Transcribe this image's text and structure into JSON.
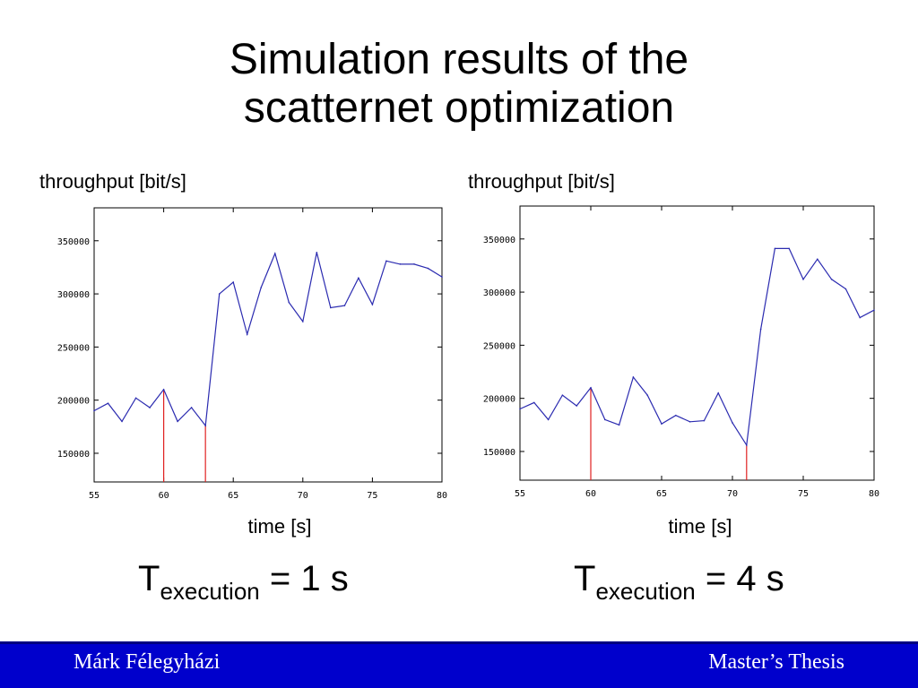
{
  "slide": {
    "title_line1": "Simulation results of the",
    "title_line2": "scatternet optimization"
  },
  "left": {
    "ylabel": "throughput [bit/s]",
    "xlabel": "time [s]",
    "formula_T": "T",
    "formula_sub": "execution",
    "formula_rest": " = 1 s"
  },
  "right": {
    "ylabel": "throughput [bit/s]",
    "xlabel": "time [s]",
    "formula_T": "T",
    "formula_sub": "execution",
    "formula_rest": " = 4 s"
  },
  "footer": {
    "author": "Márk Félegyházi",
    "thesis": "Master’s Thesis",
    "background_color": "#0000cc"
  },
  "chart_data": [
    {
      "type": "line",
      "xlim": [
        55,
        80
      ],
      "ylim": [
        123000,
        381000
      ],
      "xticks": [
        55,
        60,
        65,
        70,
        75,
        80
      ],
      "yticks": [
        150000,
        200000,
        250000,
        300000,
        350000
      ],
      "ytick_labels": [
        "150000",
        "200000",
        "250000",
        "300000",
        "350000"
      ],
      "line_color": "#2b2bb0",
      "marker_color": "#e02020",
      "x": [
        55,
        56,
        57,
        58,
        59,
        60,
        61,
        62,
        63,
        64,
        65,
        66,
        67,
        68,
        69,
        70,
        71,
        72,
        73,
        74,
        75,
        76,
        77,
        78,
        79,
        80
      ],
      "y": [
        190000,
        197000,
        180000,
        202000,
        193000,
        210000,
        180000,
        193000,
        176000,
        300000,
        311000,
        262000,
        306000,
        338000,
        292000,
        274000,
        339000,
        287000,
        289000,
        315000,
        290000,
        331000,
        328000,
        328000,
        324000,
        316000
      ],
      "markers": [
        60,
        63
      ]
    },
    {
      "type": "line",
      "xlim": [
        55,
        80
      ],
      "ylim": [
        123000,
        381000
      ],
      "xticks": [
        55,
        60,
        65,
        70,
        75,
        80
      ],
      "yticks": [
        150000,
        200000,
        250000,
        300000,
        350000
      ],
      "ytick_labels": [
        "150000",
        "200000",
        "250000",
        "300000",
        "350000"
      ],
      "line_color": "#2b2bb0",
      "marker_color": "#e02020",
      "x": [
        55,
        56,
        57,
        58,
        59,
        60,
        61,
        62,
        63,
        64,
        65,
        66,
        67,
        68,
        69,
        70,
        71,
        72,
        73,
        74,
        75,
        76,
        77,
        78,
        79,
        80
      ],
      "y": [
        190000,
        196000,
        180000,
        203000,
        193000,
        210000,
        180000,
        175000,
        220000,
        203000,
        176000,
        184000,
        178000,
        179000,
        205000,
        177000,
        156000,
        265000,
        341000,
        341000,
        312000,
        331000,
        312000,
        303000,
        276000,
        283000
      ],
      "markers": [
        60,
        71
      ]
    }
  ]
}
